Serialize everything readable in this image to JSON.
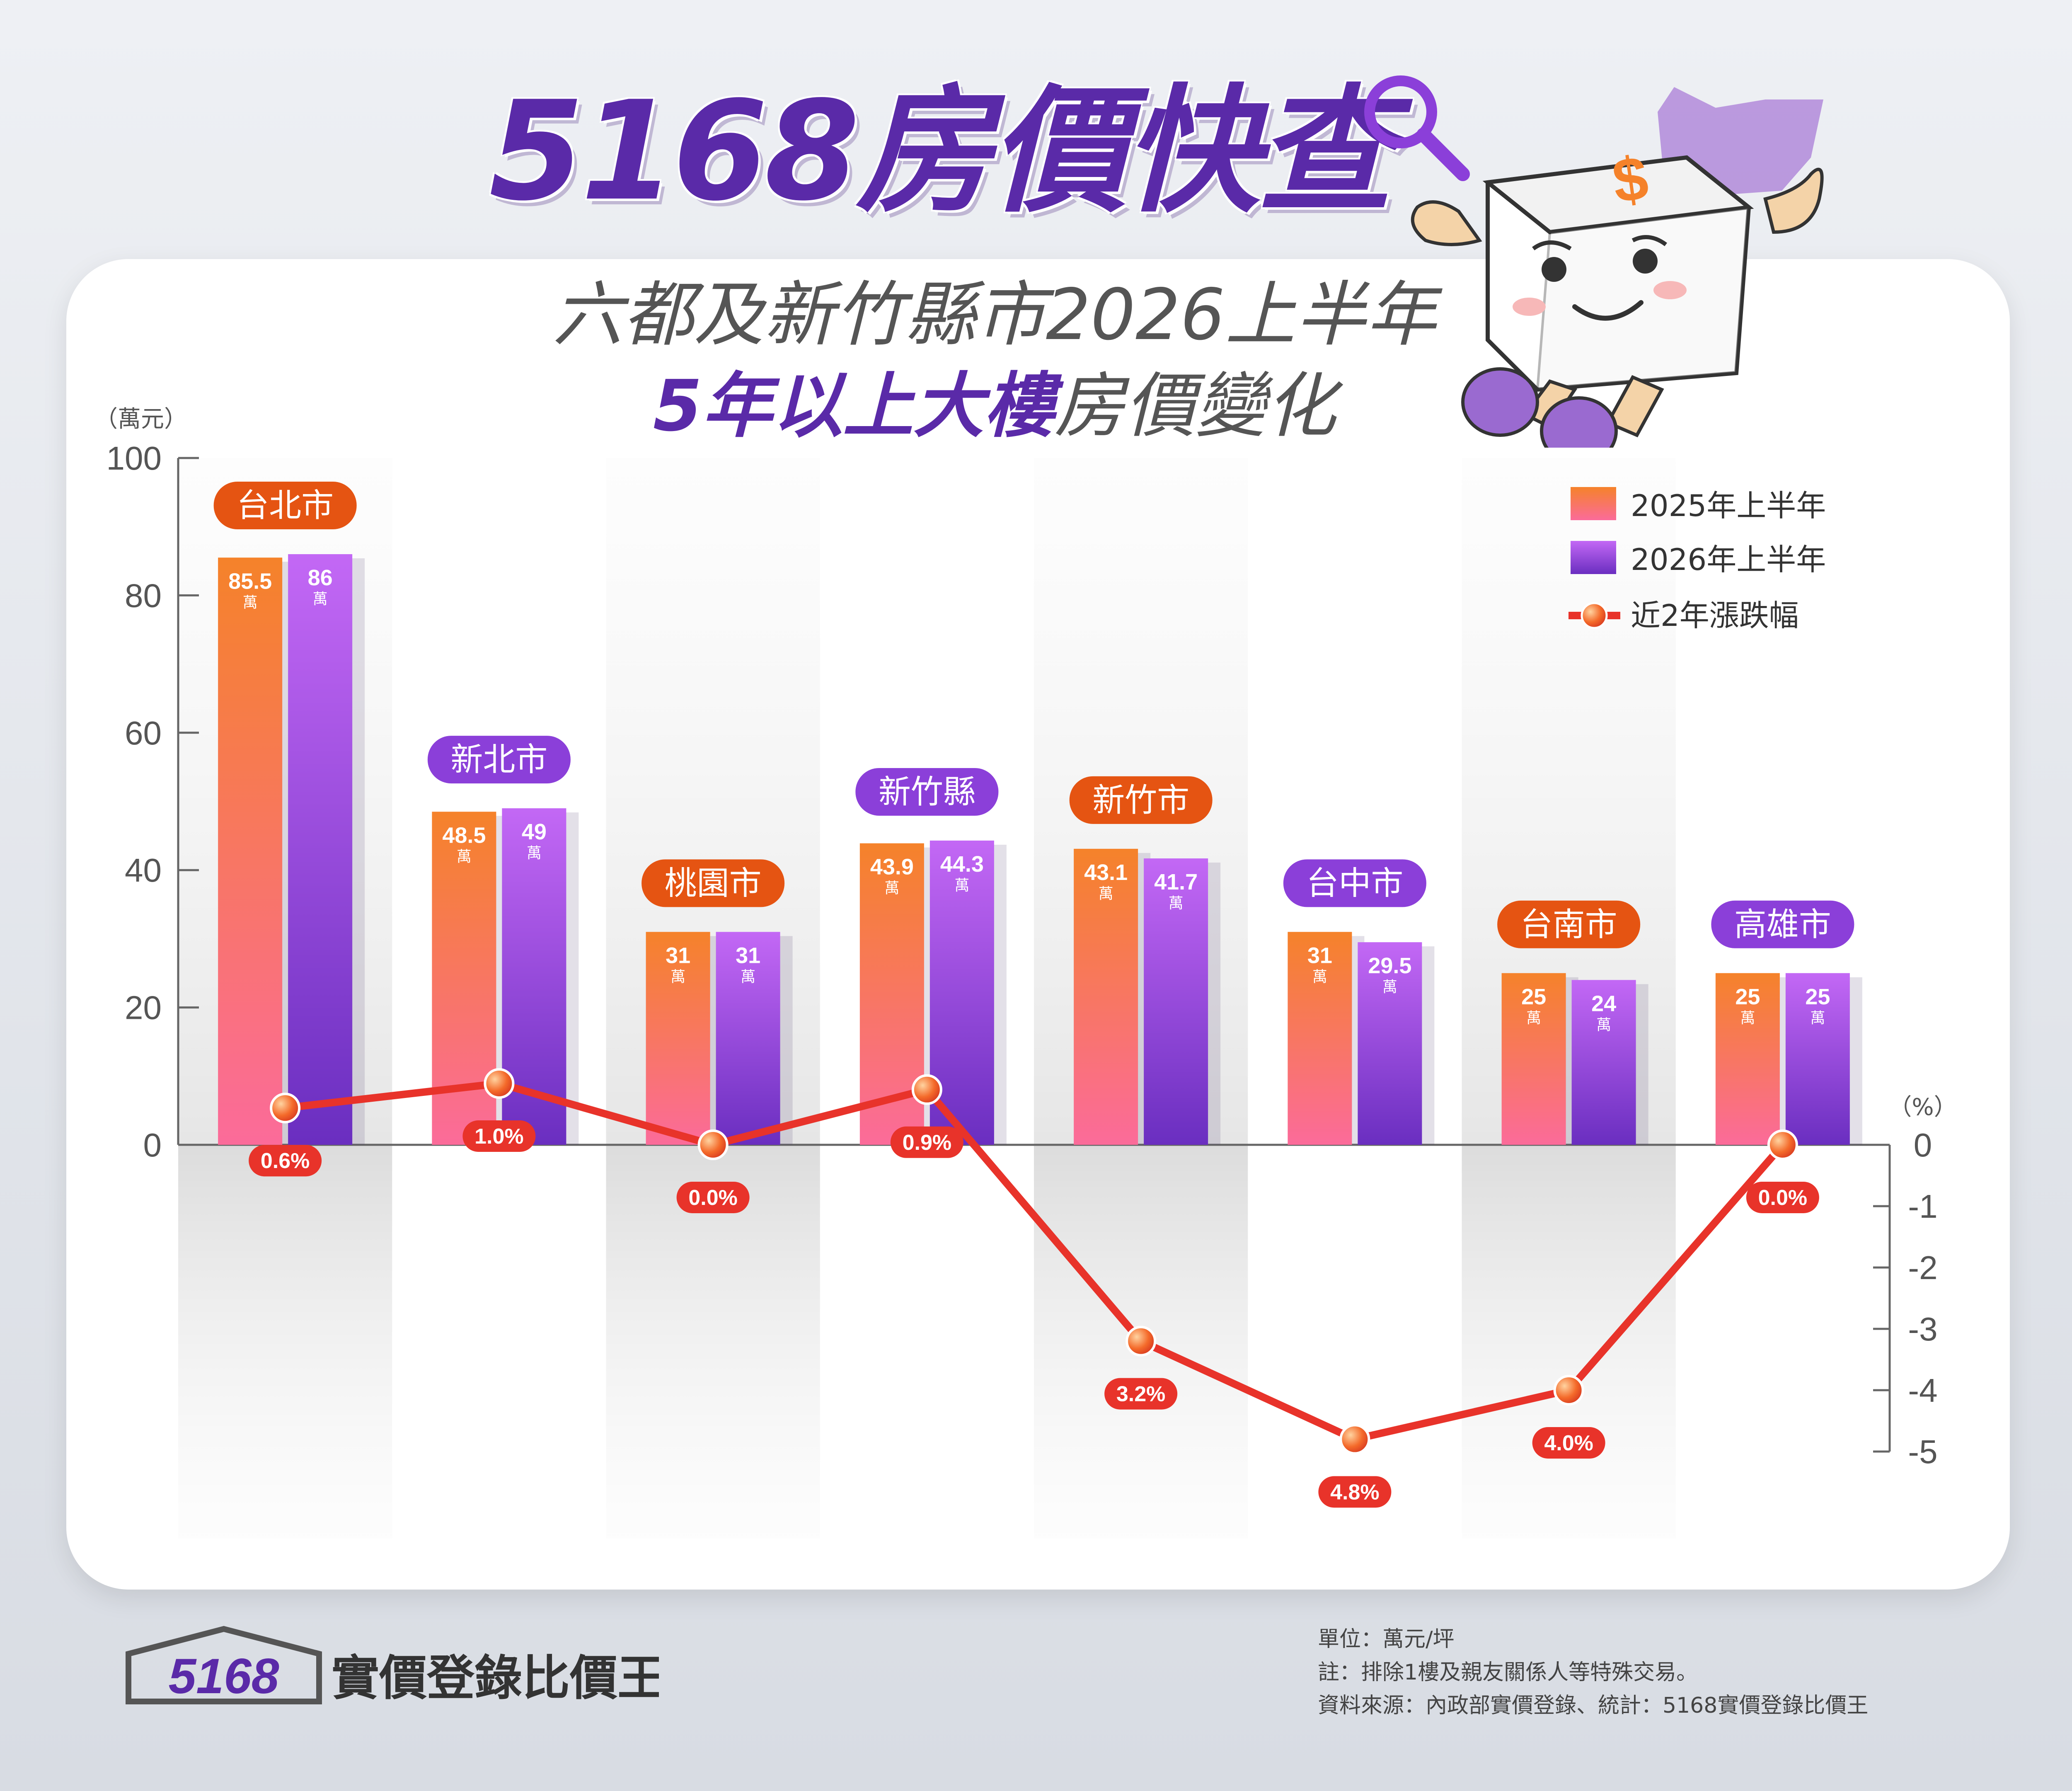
{
  "header": {
    "brand_title": "5168房價快查",
    "subtitle_line1": "六都及新竹縣市2026上半年",
    "subtitle_line2_highlight": "5年以上大樓",
    "subtitle_line2_rest": "房價變化",
    "icons": [
      "magnifier-icon",
      "mascot-icon"
    ]
  },
  "chart_data": {
    "type": "bar",
    "categories": [
      "台北市",
      "新北市",
      "桃園市",
      "新竹縣",
      "新竹市",
      "台中市",
      "台南市",
      "高雄市"
    ],
    "category_badge_colors": [
      "orange",
      "purple",
      "orange",
      "purple",
      "orange",
      "purple",
      "orange",
      "purple"
    ],
    "series": [
      {
        "name": "2025年上半年",
        "values": [
          85.5,
          48.5,
          31,
          43.9,
          43.1,
          31,
          25,
          25
        ],
        "labels": [
          "85.5",
          "48.5",
          "31",
          "43.9",
          "43.1",
          "31",
          "25",
          "25"
        ],
        "color": "#f5822a"
      },
      {
        "name": "2026年上半年",
        "values": [
          86,
          49,
          31,
          44.3,
          41.7,
          29.5,
          24,
          25
        ],
        "labels": [
          "86",
          "49",
          "31",
          "44.3",
          "41.7",
          "29.5",
          "24",
          "25"
        ],
        "color": "#a855e8"
      }
    ],
    "bar_value_unit": "萬",
    "line_series": {
      "name": "近2年漲跌幅",
      "values": [
        0.6,
        1.0,
        0.0,
        0.9,
        -3.2,
        -4.8,
        -4.0,
        0.0
      ],
      "labels": [
        "0.6",
        "1.0",
        "0.0",
        "0.9",
        "3.2",
        "4.8",
        "4.0",
        "0.0"
      ],
      "label_suffix": "%",
      "color": "#e8332a"
    },
    "y_left": {
      "unit_label": "（萬元）",
      "range": [
        0,
        100
      ],
      "ticks": [
        "0",
        "20",
        "40",
        "60",
        "80",
        "100"
      ]
    },
    "y_right": {
      "unit_label": "（%）",
      "range": [
        -5,
        0
      ],
      "ticks": [
        "0",
        "-1",
        "-2",
        "-3",
        "-4",
        "-5"
      ]
    },
    "legend_position": "top-right",
    "grid": false
  },
  "footer": {
    "logo_number": "5168",
    "logo_text": "實價登錄比價王",
    "note_unit": "單位：萬元/坪",
    "note_exclusion": "註：排除1樓及親友關係人等特殊交易。",
    "note_source": "資料來源：內政部實價登錄、統計：5168實價登錄比價王"
  },
  "colors": {
    "brand_purple": "#5a2aa8",
    "bar_2025": "#f5822a",
    "bar_2026": "#a855e8",
    "badge_orange": "#e55412",
    "badge_purple": "#8b3fd9",
    "line_red": "#e8332a"
  }
}
